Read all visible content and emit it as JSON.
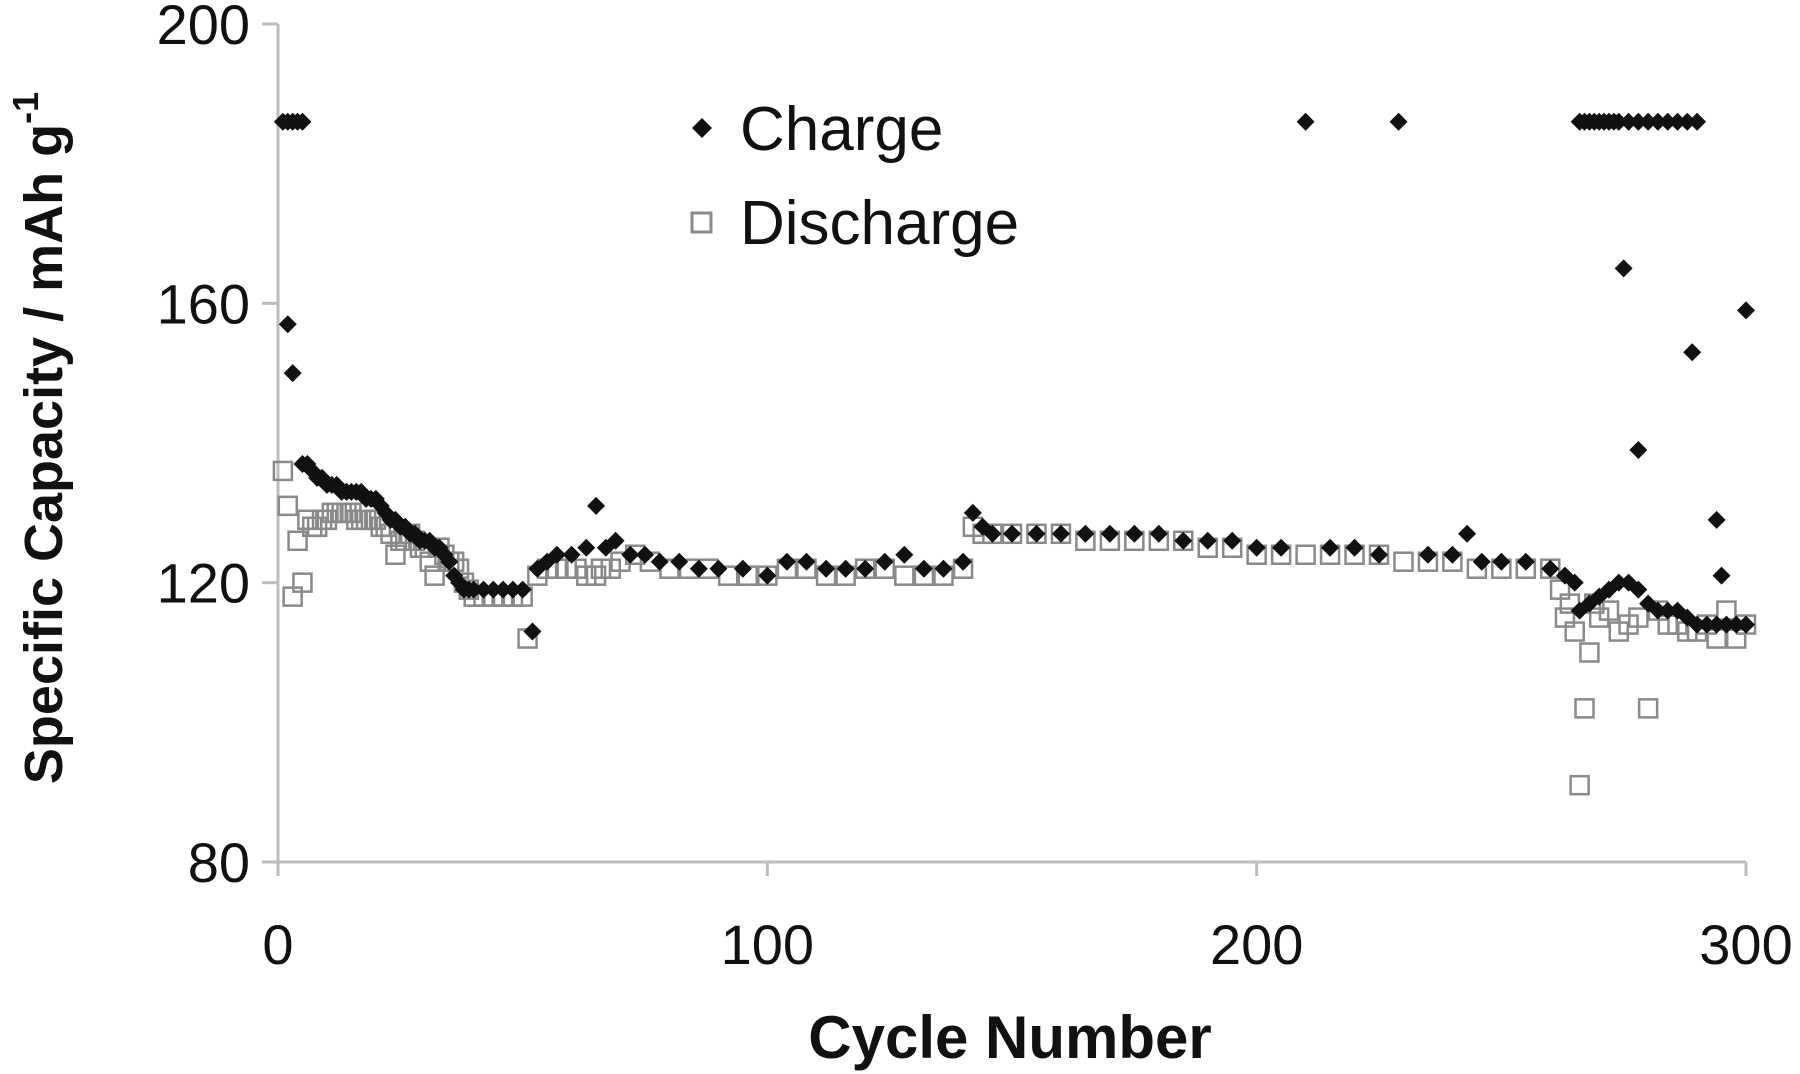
{
  "chart_data": {
    "type": "scatter",
    "xlabel": "Cycle Number",
    "ylabel": "Specific Capacity / mAh g",
    "ylabel_superscript": "-1",
    "xlim": [
      0,
      300
    ],
    "ylim": [
      80,
      200
    ],
    "x_ticks": [
      0,
      100,
      200,
      300
    ],
    "y_ticks": [
      80,
      120,
      160,
      200
    ],
    "x_tick_labels": [
      "0",
      "100",
      "200",
      "300"
    ],
    "y_tick_labels": [
      "80",
      "120",
      "160",
      "200"
    ],
    "grid": false,
    "legend_position": "top-center",
    "colors": {
      "charge": "#111111",
      "discharge": "#8a8a8a",
      "axis": "#bdbdbd"
    },
    "series": [
      {
        "name": "Charge",
        "marker": "filled-diamond",
        "x": [
          1,
          2,
          3,
          4,
          5,
          2,
          3,
          5,
          6,
          7,
          8,
          9,
          10,
          11,
          12,
          13,
          14,
          15,
          16,
          17,
          18,
          19,
          20,
          21,
          22,
          23,
          24,
          25,
          26,
          27,
          28,
          29,
          30,
          31,
          32,
          33,
          34,
          35,
          36,
          37,
          38,
          39,
          40,
          42,
          44,
          46,
          48,
          50,
          52,
          53,
          55,
          57,
          60,
          63,
          65,
          67,
          69,
          72,
          75,
          78,
          82,
          86,
          90,
          95,
          100,
          104,
          108,
          112,
          116,
          120,
          124,
          128,
          132,
          136,
          140,
          142,
          144,
          146,
          150,
          155,
          160,
          165,
          170,
          175,
          180,
          185,
          190,
          195,
          200,
          205,
          210,
          215,
          220,
          225,
          229,
          235,
          240,
          243,
          246,
          250,
          255,
          260,
          263,
          265,
          266,
          267,
          268,
          269,
          270,
          271,
          272,
          273,
          274,
          276,
          278,
          280,
          282,
          284,
          286,
          288,
          290,
          266,
          268,
          270,
          272,
          274,
          276,
          278,
          280,
          282,
          284,
          286,
          288,
          290,
          292,
          294,
          296,
          298,
          300,
          275,
          278,
          289,
          294,
          295,
          300
        ],
        "y": [
          186,
          186,
          186,
          186,
          186,
          157,
          150,
          137,
          137,
          136,
          135,
          135,
          134,
          134,
          134,
          133,
          133,
          133,
          133,
          133,
          132,
          132,
          132,
          131,
          130,
          129,
          129,
          128,
          128,
          127,
          127,
          126,
          126,
          126,
          125,
          125,
          124,
          123,
          121,
          120,
          119,
          119,
          119,
          119,
          119,
          119,
          119,
          119,
          113,
          122,
          123,
          124,
          124,
          125,
          131,
          125,
          126,
          124,
          124,
          123,
          123,
          122,
          122,
          122,
          121,
          123,
          123,
          122,
          122,
          122,
          123,
          124,
          122,
          122,
          123,
          130,
          128,
          127,
          127,
          127,
          127,
          127,
          127,
          127,
          127,
          126,
          126,
          126,
          125,
          125,
          186,
          125,
          125,
          124,
          186,
          124,
          124,
          127,
          123,
          123,
          123,
          122,
          121,
          120,
          186,
          186,
          186,
          186,
          186,
          186,
          186,
          186,
          186,
          186,
          186,
          186,
          186,
          186,
          186,
          186,
          186,
          116,
          117,
          118,
          119,
          120,
          120,
          119,
          117,
          116,
          116,
          116,
          115,
          114,
          114,
          114,
          114,
          114,
          114,
          165,
          139,
          153,
          129,
          121,
          159
        ]
      },
      {
        "name": "Discharge",
        "marker": "open-square",
        "x": [
          1,
          2,
          3,
          4,
          5,
          6,
          7,
          8,
          9,
          10,
          11,
          12,
          13,
          14,
          15,
          16,
          17,
          18,
          19,
          20,
          21,
          22,
          23,
          24,
          25,
          26,
          27,
          28,
          29,
          30,
          31,
          32,
          33,
          34,
          35,
          36,
          37,
          38,
          39,
          40,
          42,
          44,
          46,
          48,
          50,
          51,
          53,
          55,
          57,
          59,
          61,
          63,
          65,
          66,
          68,
          70,
          73,
          76,
          80,
          84,
          88,
          92,
          96,
          100,
          104,
          108,
          112,
          116,
          120,
          124,
          128,
          132,
          136,
          140,
          142,
          144,
          146,
          150,
          155,
          160,
          165,
          170,
          175,
          180,
          185,
          190,
          195,
          200,
          205,
          210,
          215,
          220,
          225,
          230,
          235,
          240,
          245,
          250,
          255,
          260,
          262,
          263,
          264,
          265,
          266,
          267,
          268,
          269,
          270,
          272,
          274,
          276,
          278,
          280,
          282,
          284,
          286,
          288,
          290,
          292,
          294,
          296,
          298,
          300
        ],
        "y": [
          136,
          131,
          118,
          126,
          120,
          129,
          128,
          128,
          129,
          129,
          130,
          130,
          130,
          130,
          130,
          129,
          129,
          129,
          129,
          129,
          128,
          128,
          127,
          124,
          126,
          126,
          127,
          126,
          125,
          125,
          123,
          121,
          125,
          124,
          123,
          123,
          122,
          120,
          119,
          118,
          118,
          118,
          118,
          118,
          118,
          112,
          121,
          122,
          122,
          122,
          122,
          121,
          121,
          122,
          122,
          123,
          124,
          123,
          122,
          122,
          122,
          121,
          121,
          121,
          122,
          122,
          121,
          121,
          122,
          122,
          121,
          121,
          121,
          122,
          128,
          127,
          127,
          127,
          127,
          127,
          126,
          126,
          126,
          126,
          126,
          125,
          125,
          124,
          124,
          124,
          124,
          124,
          124,
          123,
          123,
          123,
          122,
          122,
          122,
          122,
          119,
          115,
          117,
          113,
          91,
          102,
          110,
          117,
          115,
          116,
          113,
          114,
          115,
          102,
          116,
          114,
          114,
          113,
          113,
          114,
          112,
          116,
          112,
          114
        ]
      }
    ]
  }
}
